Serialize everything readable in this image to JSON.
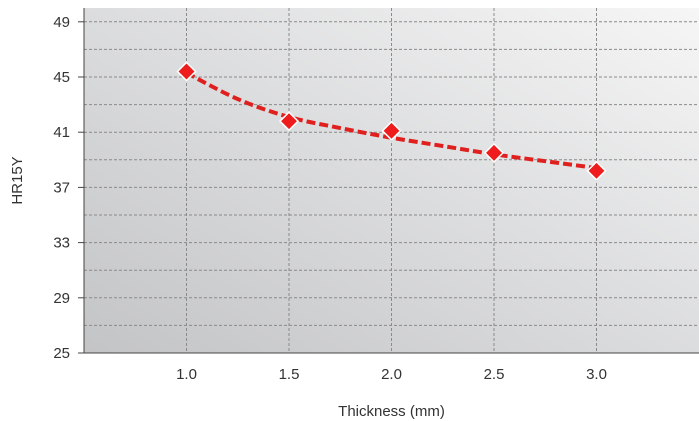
{
  "chart_data": {
    "type": "scatter",
    "title": "",
    "xlabel": "Thickness (mm)",
    "ylabel": "HR15Y",
    "xlim": [
      0.5,
      3.5
    ],
    "ylim": [
      25,
      50
    ],
    "x_ticks": [
      1.0,
      1.5,
      2.0,
      2.5,
      3.0
    ],
    "x_tick_labels": [
      "1.0",
      "1.5",
      "2.0",
      "2.5",
      "3.0"
    ],
    "y_ticks": [
      25,
      29,
      33,
      37,
      41,
      45,
      49
    ],
    "y_tick_labels": [
      "25",
      "29",
      "33",
      "37",
      "41",
      "45",
      "49"
    ],
    "grid": true,
    "series": [
      {
        "marker": "diamond",
        "color": "#ee1c1c",
        "x": [
          1.0,
          1.5,
          2.0,
          2.5,
          3.0
        ],
        "y": [
          45.4,
          41.8,
          41.1,
          39.5,
          38.2
        ]
      }
    ],
    "trendline": {
      "style": "dashed",
      "color": "#e0201e",
      "x": [
        1.0,
        1.25,
        1.5,
        1.75,
        2.0,
        2.25,
        2.5,
        2.75,
        3.0
      ],
      "y": [
        45.3,
        43.4,
        42.1,
        41.3,
        40.6,
        40.0,
        39.4,
        38.9,
        38.4
      ]
    }
  }
}
